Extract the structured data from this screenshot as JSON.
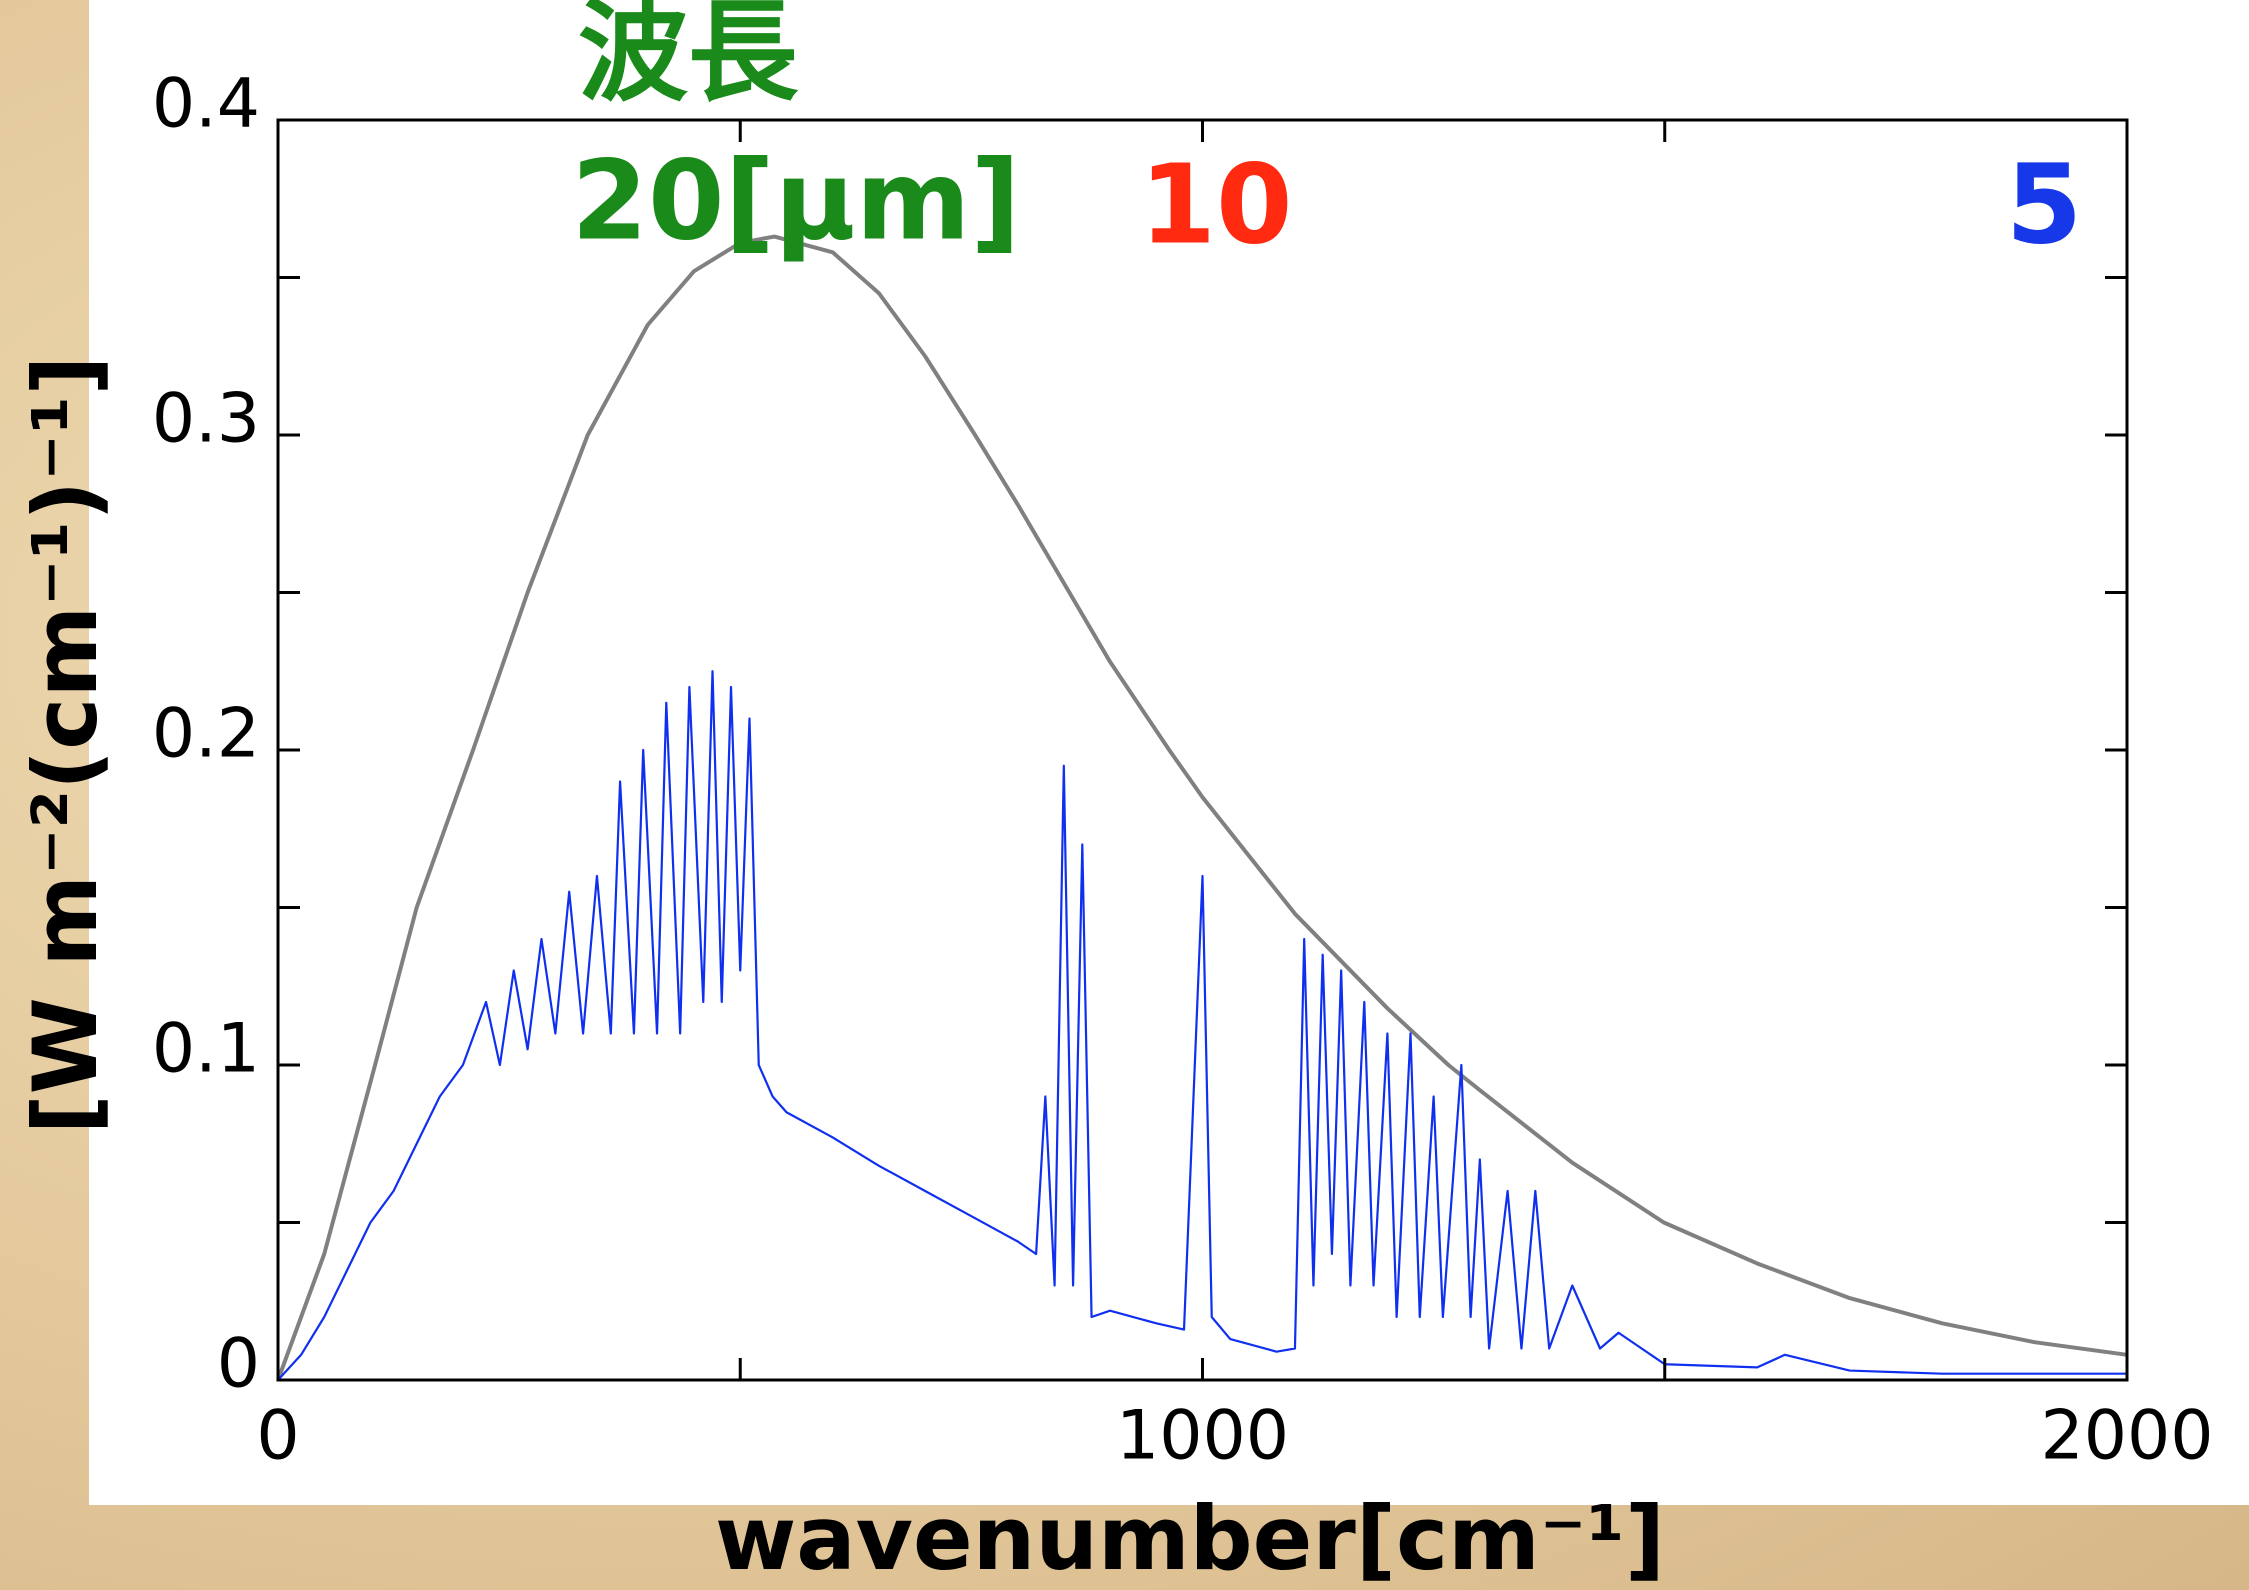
{
  "chart_data": {
    "type": "line",
    "xlabel": "wavenumber[cm⁻¹]",
    "ylabel": "[W m⁻²(cm⁻¹)⁻¹]",
    "xlim": [
      0,
      2000
    ],
    "ylim": [
      0,
      0.4
    ],
    "xticks": [
      0,
      1000,
      2000
    ],
    "yticks": [
      0,
      0.1,
      0.2,
      0.3,
      0.4
    ],
    "xminor_ticks": [
      500,
      1500
    ],
    "yminor_ticks": [
      0.05,
      0.15,
      0.25,
      0.35
    ],
    "annotations": [
      {
        "text": "波長",
        "color": "#1a8a1a"
      },
      {
        "text": "20[μm]",
        "color": "#1a8a1a"
      },
      {
        "text": "10",
        "color": "#ff2a10"
      },
      {
        "text": "5",
        "color": "#1638e8"
      }
    ],
    "series": [
      {
        "color": "#808080",
        "x": [
          0,
          50,
          105,
          150,
          211,
          270,
          335,
          400,
          450,
          500,
          537,
          600,
          650,
          700,
          754,
          800,
          850,
          900,
          964,
          1000,
          1100,
          1200,
          1266,
          1300,
          1400,
          1499,
          1600,
          1700,
          1800,
          1900,
          2000
        ],
        "values": [
          0,
          0.04,
          0.1,
          0.15,
          0.2,
          0.25,
          0.3,
          0.335,
          0.352,
          0.361,
          0.363,
          0.358,
          0.345,
          0.325,
          0.3,
          0.278,
          0.253,
          0.228,
          0.2,
          0.185,
          0.148,
          0.118,
          0.1,
          0.092,
          0.069,
          0.05,
          0.037,
          0.026,
          0.018,
          0.012,
          0.008
        ]
      },
      {
        "color": "#1030f0",
        "x": [
          0,
          25,
          50,
          75,
          100,
          125,
          150,
          175,
          200,
          225,
          240,
          255,
          270,
          285,
          300,
          315,
          330,
          345,
          360,
          370,
          385,
          395,
          410,
          420,
          435,
          445,
          460,
          470,
          480,
          490,
          500,
          510,
          520,
          535,
          550,
          600,
          650,
          700,
          750,
          800,
          820,
          830,
          840,
          850,
          860,
          870,
          880,
          900,
          950,
          980,
          1000,
          1010,
          1030,
          1080,
          1100,
          1110,
          1120,
          1130,
          1140,
          1150,
          1160,
          1175,
          1185,
          1200,
          1210,
          1225,
          1235,
          1250,
          1260,
          1280,
          1290,
          1300,
          1310,
          1330,
          1345,
          1360,
          1375,
          1400,
          1430,
          1450,
          1500,
          1600,
          1630,
          1700,
          1800,
          2000
        ],
        "values": [
          0,
          0.008,
          0.02,
          0.035,
          0.05,
          0.06,
          0.075,
          0.09,
          0.1,
          0.12,
          0.1,
          0.13,
          0.105,
          0.14,
          0.11,
          0.155,
          0.11,
          0.16,
          0.11,
          0.19,
          0.11,
          0.2,
          0.11,
          0.215,
          0.11,
          0.22,
          0.12,
          0.225,
          0.12,
          0.22,
          0.13,
          0.21,
          0.1,
          0.09,
          0.085,
          0.077,
          0.068,
          0.06,
          0.052,
          0.044,
          0.04,
          0.09,
          0.03,
          0.195,
          0.03,
          0.17,
          0.02,
          0.022,
          0.018,
          0.016,
          0.16,
          0.02,
          0.013,
          0.009,
          0.01,
          0.14,
          0.03,
          0.135,
          0.04,
          0.13,
          0.03,
          0.12,
          0.03,
          0.11,
          0.02,
          0.11,
          0.02,
          0.09,
          0.02,
          0.1,
          0.02,
          0.07,
          0.01,
          0.06,
          0.01,
          0.06,
          0.01,
          0.03,
          0.01,
          0.015,
          0.005,
          0.004,
          0.008,
          0.003,
          0.002,
          0.002
        ]
      }
    ]
  }
}
